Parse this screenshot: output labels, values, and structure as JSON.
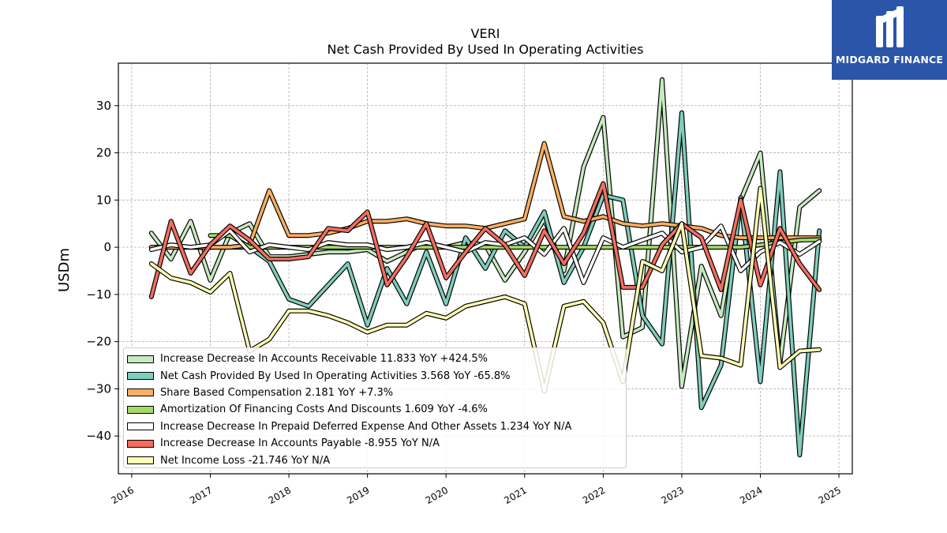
{
  "header": {
    "title": "VERI",
    "subtitle": "Net Cash Provided By Used In Operating Activities"
  },
  "logo": {
    "text": "MIDGARD FINANCE",
    "icon": "midgard-m-logo-icon",
    "bg": "#2a55a8"
  },
  "chart_data": {
    "type": "line",
    "ylabel": "USDm",
    "xlabel": "",
    "ylim": [
      -48,
      39
    ],
    "xlim": [
      2015.83,
      2025.17
    ],
    "yticks": [
      30,
      20,
      10,
      0,
      -10,
      -20,
      -30,
      -40
    ],
    "ytick_labels": [
      "30",
      "20",
      "10",
      "0",
      "−10",
      "−20",
      "−30",
      "−40"
    ],
    "xticks": [
      2016,
      2017,
      2018,
      2019,
      2020,
      2021,
      2022,
      2023,
      2024,
      2025
    ],
    "xtick_labels": [
      "2016",
      "2017",
      "2018",
      "2019",
      "2020",
      "2021",
      "2022",
      "2023",
      "2024",
      "2025"
    ],
    "grid": true,
    "legend_position": "bottom-left",
    "series": [
      {
        "name": "Increase Decrease In Accounts Receivable",
        "legend": "Increase Decrease In Accounts Receivable  11.833 YoY +424.5%",
        "color": "#c7e9c0",
        "x": [
          2016.25,
          2016.5,
          2016.75,
          2017.0,
          2017.25,
          2017.5,
          2017.75,
          2018.0,
          2018.25,
          2018.5,
          2018.75,
          2019.0,
          2019.25,
          2019.5,
          2019.75,
          2020.0,
          2020.25,
          2020.5,
          2020.75,
          2021.0,
          2021.25,
          2021.5,
          2021.75,
          2022.0,
          2022.25,
          2022.5,
          2022.75,
          2023.0,
          2023.25,
          2023.5,
          2023.75,
          2024.0,
          2024.25,
          2024.5,
          2024.75
        ],
        "y": [
          3,
          -2.5,
          5.5,
          -7,
          3,
          5,
          -2,
          -2,
          -1.5,
          -1,
          -1,
          -0.5,
          -3,
          -1,
          1,
          0,
          1,
          0.5,
          -7,
          -1,
          6,
          -5,
          17,
          27.5,
          -19,
          -17,
          35.5,
          -29.5,
          -4,
          -14.5,
          10,
          20,
          -24.5,
          8.5,
          12
        ]
      },
      {
        "name": "Net Cash Provided By Used In Operating Activities",
        "legend": "Net Cash Provided By Used In Operating Activities  3.568 YoY -65.8%",
        "color": "#7fcdbb",
        "x": [
          2016.25,
          2016.5,
          2016.75,
          2017.0,
          2017.25,
          2017.5,
          2017.75,
          2018.0,
          2018.25,
          2018.5,
          2018.75,
          2019.0,
          2019.25,
          2019.5,
          2019.75,
          2020.0,
          2020.25,
          2020.5,
          2020.75,
          2021.0,
          2021.25,
          2021.5,
          2021.75,
          2022.0,
          2022.25,
          2022.5,
          2022.75,
          2023.0,
          2023.25,
          2023.5,
          2023.75,
          2024.0,
          2024.25,
          2024.5,
          2024.75
        ],
        "y": [
          0,
          0,
          0,
          0,
          0,
          0,
          -3,
          -11,
          -12.5,
          -8,
          -3.5,
          -16.5,
          -4.5,
          -12,
          -1,
          -12,
          2,
          -4.5,
          3.5,
          0,
          7.5,
          -7.5,
          0,
          11,
          10,
          -14.5,
          -20.5,
          28.5,
          -34,
          -25,
          10.5,
          -28.5,
          16,
          -44,
          3.5
        ]
      },
      {
        "name": "Share Based Compensation",
        "legend": "Share Based Compensation  2.181 YoY +7.3%",
        "color": "#fdae61",
        "x": [
          2016.25,
          2016.5,
          2016.75,
          2017.0,
          2017.25,
          2017.5,
          2017.75,
          2018.0,
          2018.25,
          2018.5,
          2018.75,
          2019.0,
          2019.25,
          2019.5,
          2019.75,
          2020.0,
          2020.25,
          2020.5,
          2020.75,
          2021.0,
          2021.25,
          2021.5,
          2021.75,
          2022.0,
          2022.25,
          2022.5,
          2022.75,
          2023.0,
          2023.25,
          2023.5,
          2023.75,
          2024.0,
          2024.25,
          2024.5,
          2024.75
        ],
        "y": [
          0,
          0,
          0,
          0,
          0,
          0.5,
          12,
          2.5,
          2.5,
          3,
          4,
          5.5,
          5.5,
          6,
          5,
          4.5,
          4.5,
          4,
          5,
          6,
          22,
          6.5,
          5.5,
          6.5,
          5,
          4.5,
          5,
          4.5,
          4,
          2.5,
          2,
          2,
          2,
          2,
          2
        ]
      },
      {
        "name": "Amortization Of Financing Costs And Discounts",
        "legend": "Amortization Of Financing Costs And Discounts  1.609 YoY -4.6%",
        "color": "#a6d96a",
        "x": [
          2017.0,
          2017.25,
          2017.5,
          2017.75,
          2018.0,
          2018.25,
          2018.5,
          2018.75,
          2019.0,
          2019.25,
          2019.5,
          2019.75,
          2020.0,
          2020.25,
          2020.5,
          2020.75,
          2021.0,
          2021.25,
          2021.5,
          2021.75,
          2022.0,
          2022.25,
          2022.5,
          2022.75,
          2023.0,
          2023.25,
          2023.5,
          2023.75,
          2024.0,
          2024.25,
          2024.5,
          2024.75
        ],
        "y": [
          2.5,
          2.5,
          0,
          0,
          0,
          0,
          0,
          0,
          0,
          0,
          0,
          0,
          0,
          0,
          0,
          0,
          0,
          0,
          0,
          0,
          0,
          0,
          0,
          0,
          0,
          0,
          0,
          0,
          0.5,
          1,
          1.5,
          1.6
        ]
      },
      {
        "name": "Increase Decrease In Prepaid Deferred Expense And Other Assets",
        "legend": "Increase Decrease In Prepaid Deferred Expense And Other Assets  1.234 YoY N/A",
        "color": "#ffffff",
        "x": [
          2016.25,
          2016.5,
          2016.75,
          2017.0,
          2017.25,
          2017.5,
          2017.75,
          2018.0,
          2018.25,
          2018.5,
          2018.75,
          2019.0,
          2019.25,
          2019.5,
          2019.75,
          2020.0,
          2020.25,
          2020.5,
          2020.75,
          2021.0,
          2021.25,
          2021.5,
          2021.75,
          2022.0,
          2022.25,
          2022.5,
          2022.75,
          2023.0,
          2023.25,
          2023.5,
          2023.75,
          2024.0,
          2024.25,
          2024.5,
          2024.75
        ],
        "y": [
          -0.5,
          0.5,
          0,
          0.5,
          3.5,
          -1,
          0.5,
          0,
          -0.5,
          1,
          0.5,
          0.5,
          -0.5,
          0,
          1,
          0,
          -1,
          1,
          0.5,
          2,
          -1.5,
          4,
          -7.5,
          2,
          0,
          1.5,
          3,
          -1,
          0,
          4.5,
          -5,
          -1,
          1,
          -1.5,
          1.2
        ]
      },
      {
        "name": "Increase Decrease In Accounts Payable",
        "legend": "Increase Decrease In Accounts Payable  -8.955 YoY N/A",
        "color": "#f46d5f",
        "x": [
          2016.25,
          2016.5,
          2016.75,
          2017.0,
          2017.25,
          2017.5,
          2017.75,
          2018.0,
          2018.25,
          2018.5,
          2018.75,
          2019.0,
          2019.25,
          2019.5,
          2019.75,
          2020.0,
          2020.25,
          2020.5,
          2020.75,
          2021.0,
          2021.25,
          2021.5,
          2021.75,
          2022.0,
          2022.25,
          2022.5,
          2022.75,
          2023.0,
          2023.25,
          2023.5,
          2023.75,
          2024.0,
          2024.25,
          2024.5,
          2024.75
        ],
        "y": [
          -10.5,
          5.5,
          -5.5,
          0.5,
          4.5,
          1.5,
          -2.5,
          -2.5,
          -2,
          4,
          3.5,
          7.5,
          -8,
          -2,
          5,
          -6.5,
          -1,
          4,
          0.5,
          -6,
          3.5,
          -3.5,
          3,
          13.5,
          -8.5,
          -8.5,
          0.5,
          5,
          2,
          -9,
          10,
          -8,
          4,
          -3.5,
          -9
        ]
      },
      {
        "name": "Net Income Loss",
        "legend": "Net Income Loss  -21.746 YoY N/A",
        "color": "#ffffb3",
        "x": [
          2016.25,
          2016.5,
          2016.75,
          2017.0,
          2017.25,
          2017.5,
          2017.75,
          2018.0,
          2018.25,
          2018.5,
          2018.75,
          2019.0,
          2019.25,
          2019.5,
          2019.75,
          2020.0,
          2020.25,
          2020.5,
          2020.75,
          2021.0,
          2021.25,
          2021.5,
          2021.75,
          2022.0,
          2022.25,
          2022.5,
          2022.75,
          2023.0,
          2023.25,
          2023.5,
          2023.75,
          2024.0,
          2024.25,
          2024.5,
          2024.75
        ],
        "y": [
          -3.5,
          -6.5,
          -7.5,
          -9.5,
          -5.5,
          -22,
          -19.5,
          -13.5,
          -13.5,
          -14.5,
          -16,
          -18,
          -16.5,
          -16.5,
          -14,
          -15,
          -12.5,
          -11.5,
          -10.5,
          -12,
          -30.5,
          -12.5,
          -11.5,
          -16,
          -28.5,
          -3,
          -5,
          5,
          -23,
          -23.5,
          -25,
          12.5,
          -25.5,
          -22,
          -21.7
        ]
      }
    ]
  }
}
